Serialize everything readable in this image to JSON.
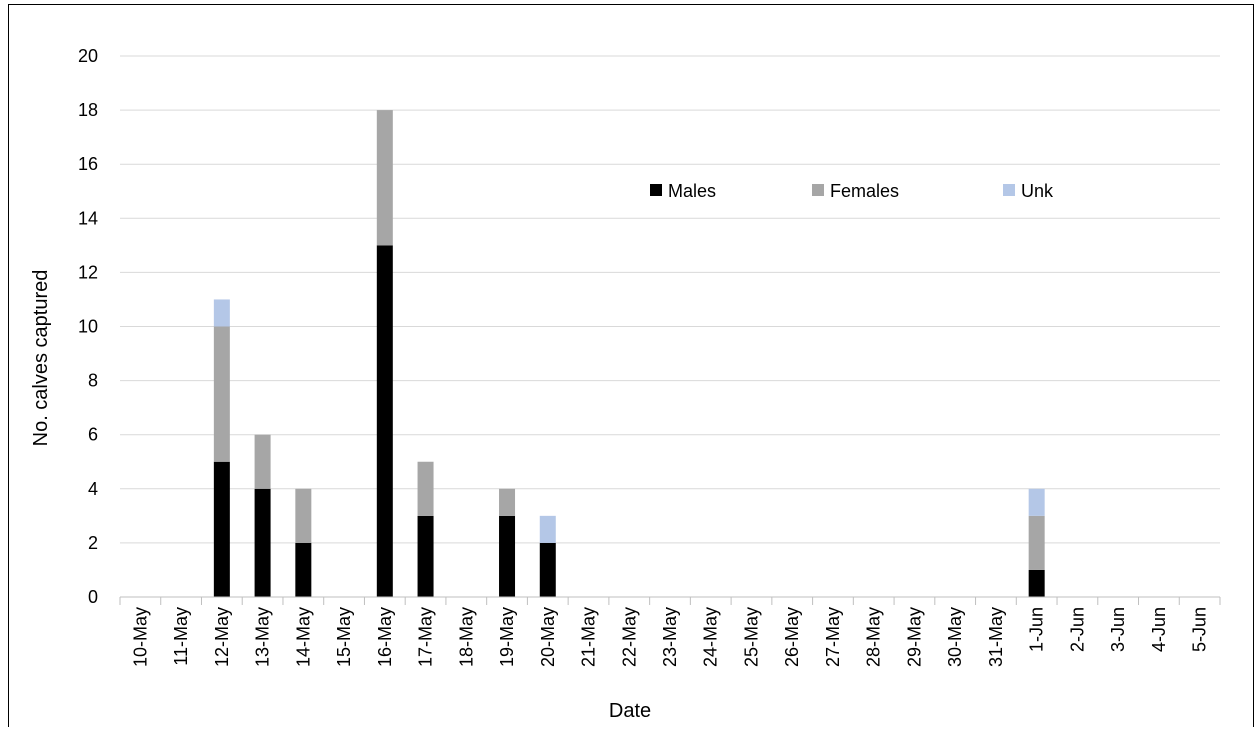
{
  "chart_data": {
    "type": "bar",
    "stacked": true,
    "categories": [
      "10-May",
      "11-May",
      "12-May",
      "13-May",
      "14-May",
      "15-May",
      "16-May",
      "17-May",
      "18-May",
      "19-May",
      "20-May",
      "21-May",
      "22-May",
      "23-May",
      "24-May",
      "25-May",
      "26-May",
      "27-May",
      "28-May",
      "29-May",
      "30-May",
      "31-May",
      "1-Jun",
      "2-Jun",
      "3-Jun",
      "4-Jun",
      "5-Jun"
    ],
    "series": [
      {
        "name": "Males",
        "color": "#000000",
        "values": [
          0,
          0,
          5,
          4,
          2,
          0,
          13,
          3,
          0,
          3,
          2,
          0,
          0,
          0,
          0,
          0,
          0,
          0,
          0,
          0,
          0,
          0,
          1,
          0,
          0,
          0,
          0
        ]
      },
      {
        "name": "Females",
        "color": "#a6a6a6",
        "values": [
          0,
          0,
          5,
          2,
          2,
          0,
          5,
          2,
          0,
          1,
          0,
          0,
          0,
          0,
          0,
          0,
          0,
          0,
          0,
          0,
          0,
          0,
          2,
          0,
          0,
          0,
          0
        ]
      },
      {
        "name": "Unk",
        "color": "#b4c7e7",
        "values": [
          0,
          0,
          1,
          0,
          0,
          0,
          0,
          0,
          0,
          0,
          1,
          0,
          0,
          0,
          0,
          0,
          0,
          0,
          0,
          0,
          0,
          0,
          1,
          0,
          0,
          0,
          0
        ]
      }
    ],
    "title": "",
    "xlabel": "Date",
    "ylabel": "No. calves captured",
    "ylim": [
      0,
      20
    ],
    "yticks": [
      0,
      2,
      4,
      6,
      8,
      10,
      12,
      14,
      16,
      18,
      20
    ],
    "grid": true,
    "legend_position": "top-right"
  }
}
